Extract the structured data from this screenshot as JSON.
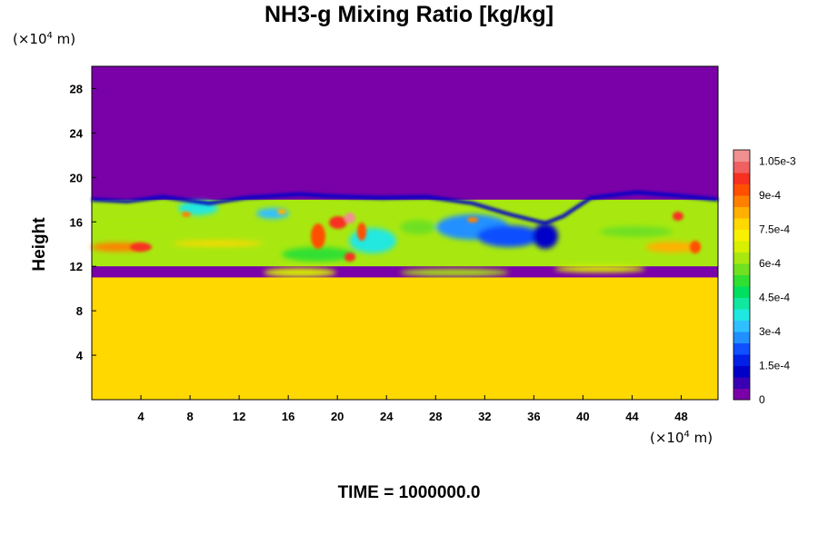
{
  "chart_data": {
    "type": "heatmap",
    "title": "NH3-g Mixing Ratio [kg/kg]",
    "xlabel": "",
    "ylabel": "Height",
    "x_unit": "(×10",
    "x_unit_exp": "4",
    "x_unit_tail": " m)",
    "y_unit": "(×10",
    "y_unit_exp": "4",
    "y_unit_tail": " m)",
    "footer": "TIME = 1000000.0",
    "xlim": [
      0,
      51
    ],
    "ylim": [
      0,
      30
    ],
    "x_ticks": [
      "4",
      "8",
      "12",
      "16",
      "20",
      "24",
      "28",
      "32",
      "36",
      "40",
      "44",
      "48"
    ],
    "y_ticks": [
      "4",
      "8",
      "12",
      "16",
      "20",
      "24",
      "28"
    ],
    "colorbar": {
      "min": 0,
      "max": 0.0011,
      "ticks": [
        "0",
        "1.5e-4",
        "3e-4",
        "4.5e-4",
        "6e-4",
        "7.5e-4",
        "9e-4",
        "1.05e-3"
      ],
      "colors": [
        "#7a00a8",
        "#3a00b4",
        "#0000c8",
        "#0020e8",
        "#1050ff",
        "#2090ff",
        "#30c0ff",
        "#20e8e0",
        "#10e8a0",
        "#00e060",
        "#30e030",
        "#70e020",
        "#a8e810",
        "#d8f000",
        "#f8f000",
        "#ffd800",
        "#ffb000",
        "#ff8000",
        "#ff5000",
        "#f83020",
        "#f06060",
        "#f09090"
      ]
    },
    "fields": {
      "upper_value": 0,
      "lower_value": 0.00078,
      "mid_value": 0.0006,
      "mid_layer_range": [
        12,
        18
      ],
      "lower_layer_range": [
        0,
        11
      ]
    }
  }
}
